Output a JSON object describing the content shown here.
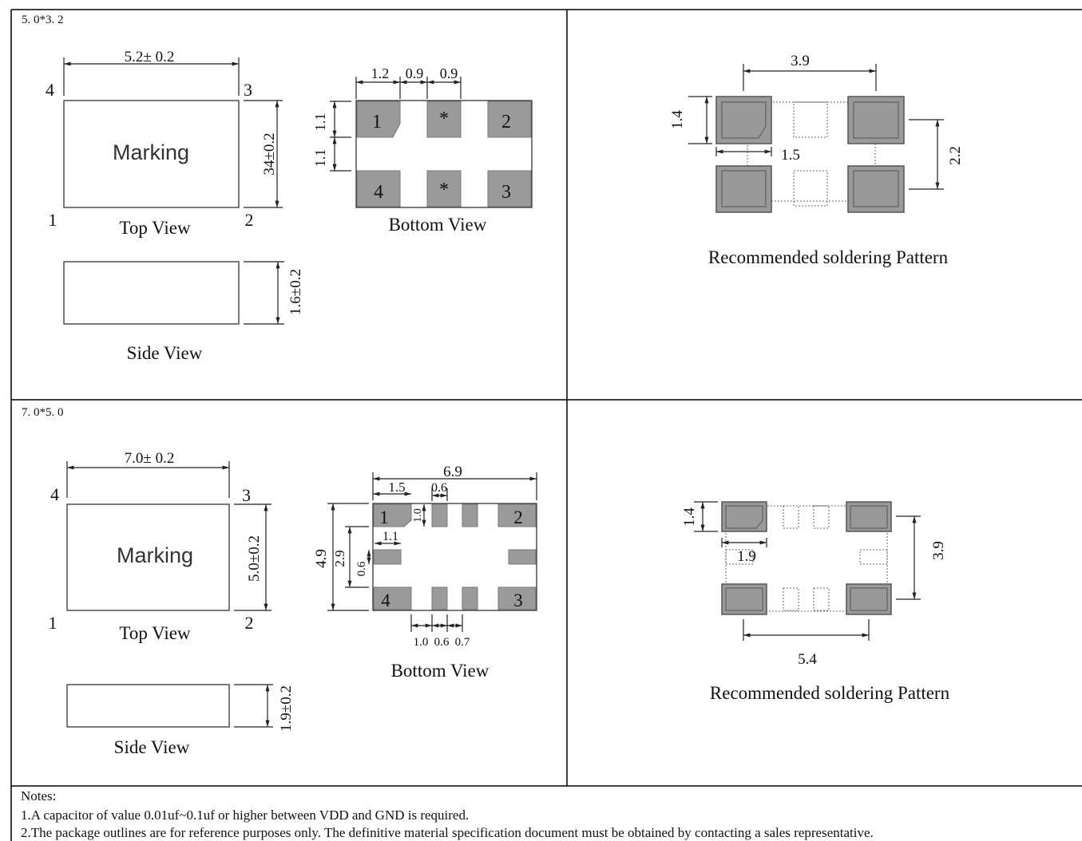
{
  "sections": [
    {
      "package_label": "5. 0*3. 2",
      "top_view": {
        "marking": "Marking",
        "title": "Top View",
        "width_dim": "5.2± 0.2",
        "height_dim": "34±0.2",
        "pins": [
          "4",
          "3",
          "1",
          "2"
        ]
      },
      "side_view": {
        "title": "Side View",
        "height_dim": "1.6±0.2"
      },
      "bottom_view": {
        "title": "Bottom View",
        "top_dims": [
          "1.2",
          "0.9",
          "0.9"
        ],
        "left_dims": [
          "1.1",
          "1.1"
        ],
        "pad_labels": [
          "1",
          "*",
          "2",
          "4",
          "*",
          "3"
        ]
      },
      "pattern": {
        "title": "Recommended soldering Pattern",
        "dims": [
          "3.9",
          "1.4",
          "1.5",
          "2.2"
        ]
      }
    },
    {
      "package_label": "7. 0*5. 0",
      "top_view": {
        "marking": "Marking",
        "title": "Top View",
        "width_dim": "7.0± 0.2",
        "height_dim": "5.0±0.2",
        "pins": [
          "4",
          "3",
          "1",
          "2"
        ]
      },
      "side_view": {
        "title": "Side View",
        "height_dim": "1.9±0.2"
      },
      "bottom_view": {
        "title": "Bottom View",
        "top_dims": [
          "6.9",
          "1.5",
          "0.6",
          "1.0",
          "1.1"
        ],
        "left_dims": [
          "4.9",
          "2.9",
          "0.6"
        ],
        "bottom_dims": [
          "1.0",
          "0.6",
          "0.7"
        ],
        "pad_labels": [
          "1",
          "2",
          "4",
          "3"
        ]
      },
      "pattern": {
        "title": "Recommended soldering Pattern",
        "dims": [
          "1.4",
          "1.9",
          "3.9",
          "5.4"
        ]
      }
    }
  ],
  "notes": {
    "heading": "Notes:",
    "items": [
      "1.A capacitor of value 0.01uf~0.1uf or higher between VDD and GND is required.",
      "2.The package outlines are for reference purposes only. The definitive material specification document must be obtained by contacting a sales representative."
    ]
  }
}
